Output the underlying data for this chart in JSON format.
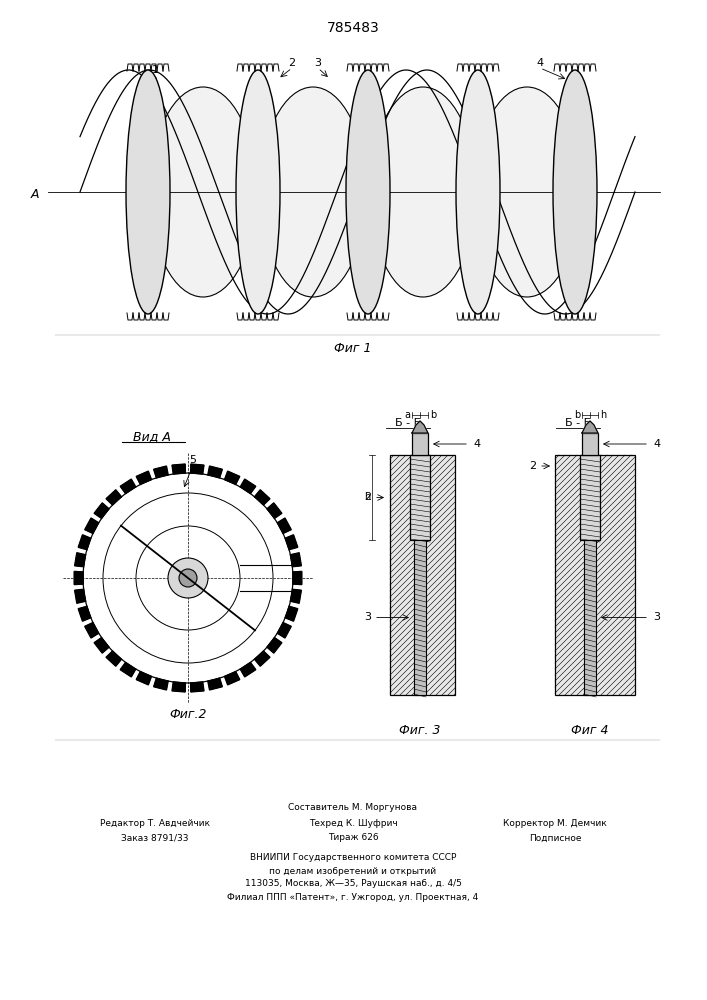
{
  "patent_number": "785483",
  "background_color": "#ffffff",
  "line_color": "#000000",
  "fig_width": 7.07,
  "fig_height": 10.0,
  "footer_lines": [
    [
      "",
      "Составитель М. Моргунова",
      ""
    ],
    [
      "Редактор Т. Авдчейчик",
      "Техред К. Шуфрич",
      "Корректор М. Демчик"
    ],
    [
      "Заказ 8791/33",
      "Тираж 626",
      "Подписное"
    ]
  ],
  "vniiipi_lines": [
    "ВНИИПИ Государственного комитета СССР",
    "по делам изобретений и открытий",
    "113035, Москва, Ж—35, Раушская наб., д. 4/5",
    "Филиал ППП «Патент», г. Ужгород, ул. Проектная, 4"
  ]
}
